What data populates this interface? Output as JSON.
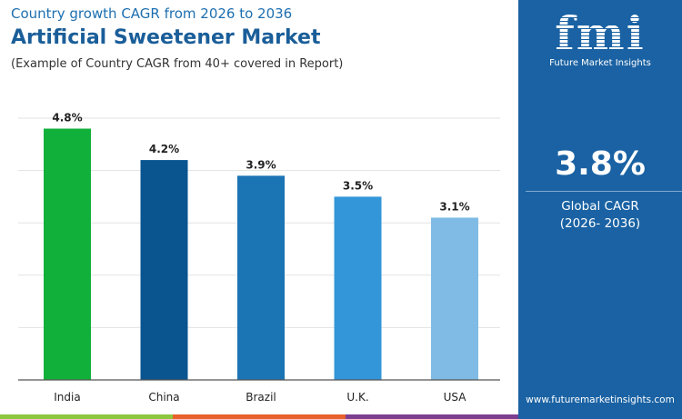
{
  "header": {
    "subtitle_top": "Country growth CAGR from 2026 to 2036",
    "title": "Artificial Sweetener Market",
    "note": "(Example of Country CAGR from 40+ covered in Report)"
  },
  "panel": {
    "logo_text": "fmi",
    "brand": "Future Market Insights",
    "cagr_value": "3.8%",
    "cagr_label": "Global CAGR",
    "cagr_period": "(2026- 2036)",
    "url": "www.futuremarketinsights.com"
  },
  "colors": {
    "panel": "#1a62a3",
    "stripes": [
      "#8dc63f",
      "#e8602c",
      "#7b3f8f"
    ]
  },
  "chart_data": {
    "type": "bar",
    "categories": [
      "India",
      "China",
      "Brazil",
      "U.K.",
      "USA"
    ],
    "values": [
      4.8,
      4.2,
      3.9,
      3.5,
      3.1
    ],
    "data_labels": [
      "4.8%",
      "4.2%",
      "3.9%",
      "3.5%",
      "3.1%"
    ],
    "colors": [
      "#11b03a",
      "#0a5590",
      "#1b74b4",
      "#3396d8",
      "#7fbbe4"
    ],
    "ylim": [
      0,
      5
    ],
    "grid": true
  }
}
